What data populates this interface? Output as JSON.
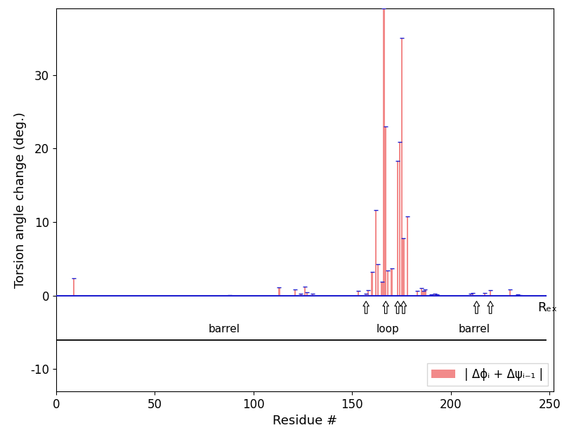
{
  "chart_data": {
    "type": "bar",
    "xlabel": "Residue #",
    "ylabel": "Torsion angle change (deg.)",
    "x": [
      9,
      88,
      113,
      121,
      124,
      126,
      127,
      130,
      153,
      157,
      158,
      160,
      162,
      163,
      165,
      166,
      167,
      168,
      170,
      173,
      174,
      175,
      176,
      178,
      183,
      185,
      186,
      187,
      190,
      192,
      193,
      210,
      211,
      217,
      220,
      230,
      234,
      235
    ],
    "series": [
      {
        "name": "| Δϕᵢ + Δψᵢ₋₁ |",
        "color": "#f28a8a",
        "values": [
          2.4,
          0.1,
          1.1,
          0.8,
          0.3,
          1.2,
          0.5,
          0.3,
          0.6,
          0.3,
          0.7,
          3.2,
          11.6,
          4.3,
          1.9,
          39,
          23,
          3.4,
          3.7,
          18.3,
          20.9,
          35,
          7.8,
          10.8,
          0.6,
          1.0,
          0.6,
          0.8,
          0.2,
          0.3,
          0.2,
          0.3,
          0.4,
          0.4,
          0.7,
          0.8,
          0.2,
          0.1
        ]
      }
    ],
    "xlim": [
      0,
      252
    ],
    "ylim": [
      -13,
      39
    ],
    "xticks": [
      0,
      50,
      100,
      150,
      200,
      250
    ],
    "yticks": [
      -10,
      0,
      10,
      20,
      30
    ],
    "legend": "lower right",
    "baseline": {
      "y": 0,
      "x_end": 248,
      "color": "#1f1fd0",
      "label": "Rₑₓ",
      "label_x": 244,
      "label_y": -1.6
    },
    "regions": {
      "y": -6,
      "x_end": 248,
      "label_y": -5.3,
      "labels": [
        {
          "text": "barrel",
          "x": 85
        },
        {
          "text": "loop",
          "x": 168
        },
        {
          "text": "barrel",
          "x": 212
        }
      ]
    },
    "arrows": {
      "x": [
        157,
        167,
        173,
        176,
        213,
        220
      ],
      "y_from": -2.7,
      "y_to": -0.5
    }
  }
}
